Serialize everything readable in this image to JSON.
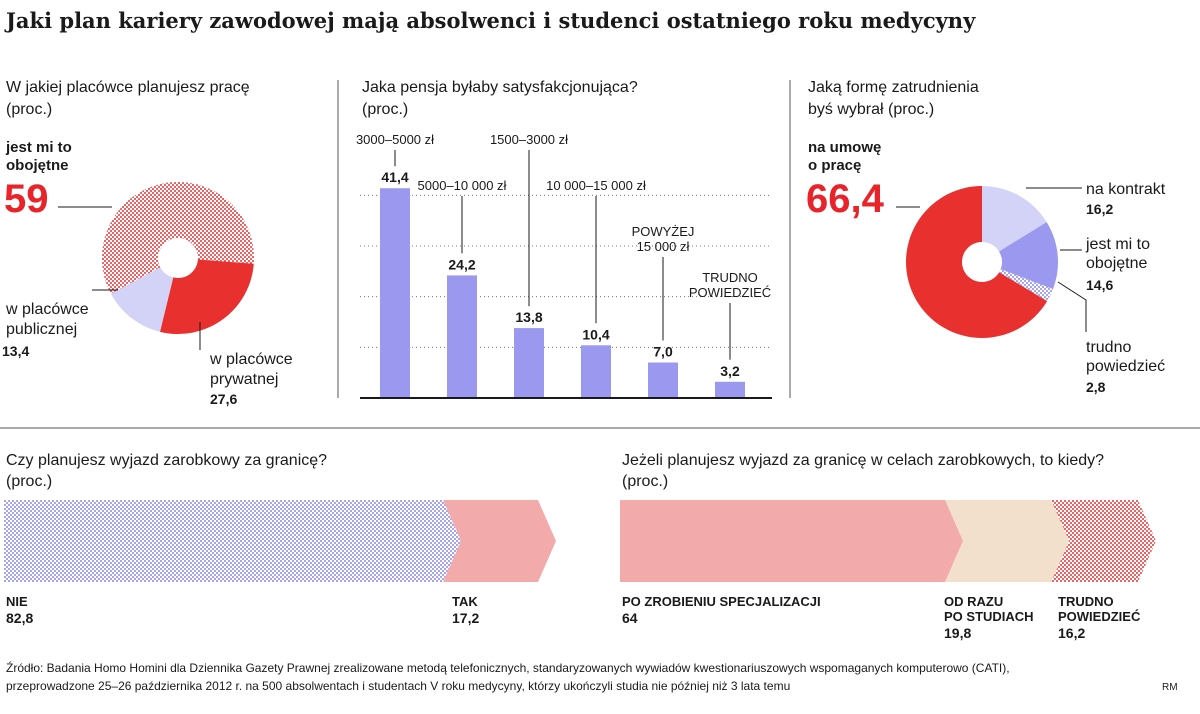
{
  "title": "Jaki plan kariery zawodowej mają absolwenci i studenci ostatniego roku medycyny",
  "colors": {
    "red": "#e8302f",
    "pink": "#f2aaab",
    "lavender": "#d3d3f7",
    "violet": "#9b98ef",
    "beige": "#f2dfcc",
    "dots_blue": "#8a8ae6",
    "dots_red": "#e8302f"
  },
  "chart_data": [
    {
      "type": "pie",
      "question": "W jakiej placówce planujesz pracę",
      "unit": "(proc.)",
      "slices": [
        {
          "label": "jest mi to obojętne",
          "value": 59
        },
        {
          "label": "w placówce prywatnej",
          "value": 27.6
        },
        {
          "label": "w placówce publicznej",
          "value": 13.4
        }
      ],
      "texts": {
        "highlight_line1": "jest mi to",
        "highlight_line2": "obojętne",
        "highlight_value": "59",
        "private_line1": "w placówce",
        "private_line2": "prywatnej",
        "private_value": "27,6",
        "public_line1": "w placówce",
        "public_line2": "publicznej",
        "public_value": "13,4"
      }
    },
    {
      "type": "bar",
      "question": "Jaka pensja byłaby satysfakcjonująca?",
      "unit": "(proc.)",
      "categories": [
        "3000–5000 zł",
        "5000–10 000 zł",
        "1500–3000 zł",
        "10 000–15 000 zł",
        "POWYŻEJ 15 000 zł",
        "TRUDNO POWIEDZIEĆ"
      ],
      "values": [
        41.4,
        24.2,
        13.8,
        10.4,
        7.0,
        3.2
      ],
      "value_labels": [
        "41,4",
        "24,2",
        "13,8",
        "10,4",
        "7,0",
        "3,2"
      ],
      "ylim": [
        0,
        45
      ],
      "grid": true,
      "category_lines": {
        "c0": [
          "3000–5000 zł"
        ],
        "c1": [
          "5000–10 000 zł"
        ],
        "c2": [
          "1500–3000 zł"
        ],
        "c3": [
          "10 000–15 000 zł"
        ],
        "c4": [
          "POWYŻEJ",
          "15 000 zł"
        ],
        "c5": [
          "TRUDNO",
          "POWIEDZIEĆ"
        ]
      }
    },
    {
      "type": "pie",
      "question_line1": "Jaką formę zatrudnienia",
      "question_line2": "byś wybrał",
      "unit": "(proc.)",
      "slices": [
        {
          "label": "na kontrakt",
          "value": 16.2
        },
        {
          "label": "jest mi to obojętne",
          "value": 14.6
        },
        {
          "label": "trudno powiedzieć",
          "value": 2.8
        },
        {
          "label": "na umowę o pracę",
          "value": 66.4
        }
      ],
      "texts": {
        "highlight_line1": "na umowę",
        "highlight_line2": "o pracę",
        "highlight_value": "66,4",
        "kontrakt_label": "na kontrakt",
        "kontrakt_value": "16,2",
        "oboj_line1": "jest mi to",
        "oboj_line2": "obojętne",
        "oboj_value": "14,6",
        "trudno_line1": "trudno",
        "trudno_line2": "powiedzieć",
        "trudno_value": "2,8"
      }
    },
    {
      "type": "bar",
      "orientation": "stacked-horizontal",
      "question": "Czy planujesz wyjazd zarobkowy za granicę?",
      "unit": "(proc.)",
      "segments": [
        {
          "label": "NIE",
          "value": 82.8,
          "value_label": "82,8"
        },
        {
          "label": "TAK",
          "value": 17.2,
          "value_label": "17,2"
        }
      ]
    },
    {
      "type": "bar",
      "orientation": "stacked-horizontal",
      "question": "Jeżeli planujesz wyjazd za granicę w celach zarobkowych, to kiedy?",
      "unit": "(proc.)",
      "segments": [
        {
          "label": "PO ZROBIENIU SPECJALIZACJI",
          "value": 64,
          "value_label": "64"
        },
        {
          "label": "OD RAZU PO STUDIACH",
          "value": 19.8,
          "value_label": "19,8",
          "lines": [
            "OD RAZU",
            "PO STUDIACH"
          ]
        },
        {
          "label": "TRUDNO POWIEDZIEĆ",
          "value": 16.2,
          "value_label": "16,2",
          "lines": [
            "TRUDNO",
            "POWIEDZIEĆ"
          ]
        }
      ]
    }
  ],
  "source_line1": "Źródło: Badania Homo Homini dla Dziennika Gazety Prawnej zrealizowane metodą telefonicznych, standaryzowanych wywiadów kwestionariuszowych wspomaganych komputerowo (CATI),",
  "source_line2": "przeprowadzone 25–26 października 2012 r. na 500 absolwentach i studentach V roku medycyny, którzy ukończyli studia nie później niż 3 lata temu",
  "author": "RM"
}
